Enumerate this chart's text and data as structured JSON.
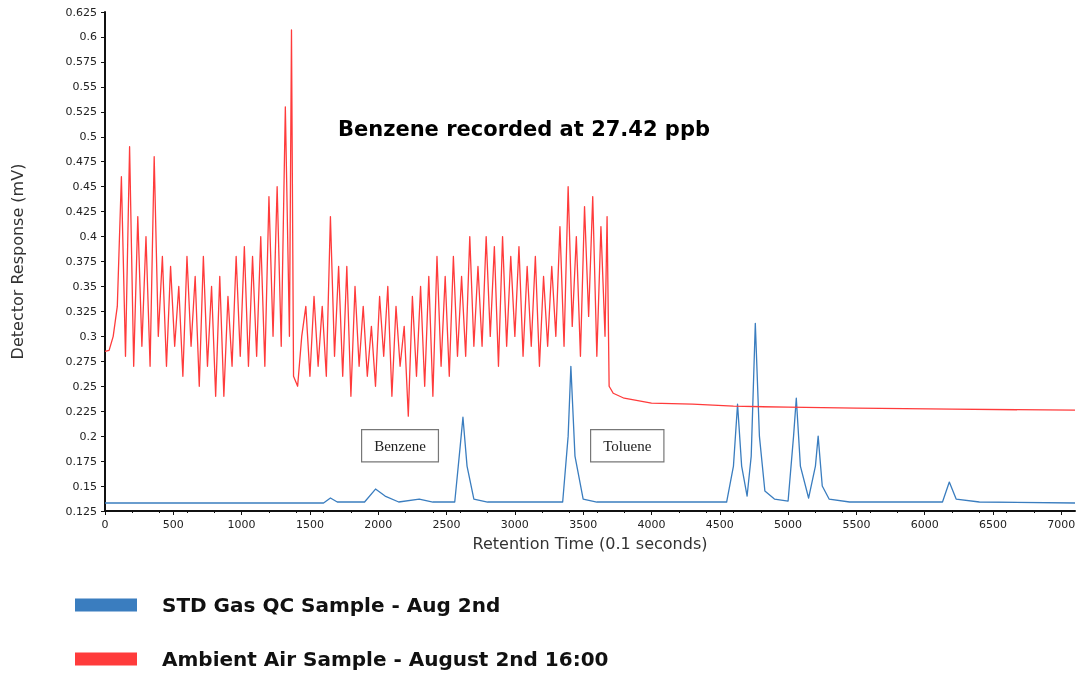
{
  "chart_data": {
    "type": "line",
    "xlabel": "Retention Time (0.1 seconds)",
    "ylabel": "Detector Response (mV)",
    "xlim": [
      0,
      7100
    ],
    "xticks": [
      0,
      500,
      1000,
      1500,
      2000,
      2500,
      3000,
      3500,
      4000,
      4500,
      5000,
      5500,
      6000,
      6500,
      7000
    ],
    "ylim": [
      0.125,
      0.625
    ],
    "yticks": [
      0.125,
      0.15,
      0.175,
      0.2,
      0.225,
      0.25,
      0.275,
      0.3,
      0.325,
      0.35,
      0.375,
      0.4,
      0.425,
      0.45,
      0.475,
      0.5,
      0.525,
      0.55,
      0.575,
      0.6,
      0.625
    ],
    "grid": false,
    "legend": "bottom",
    "marker": "none",
    "line_style": "solid",
    "annotations": [
      "Benzene recorded at 27.42 ppb",
      "Benzene",
      "Toluene"
    ],
    "series": [
      {
        "name": "STD Gas QC Sample - Aug 2nd",
        "color": "#3a7dbf",
        "x": [
          0,
          1600,
          1650,
          1700,
          1900,
          1980,
          2050,
          2150,
          2300,
          2400,
          2560,
          2600,
          2620,
          2650,
          2700,
          2800,
          3350,
          3390,
          3410,
          3440,
          3500,
          3600,
          4550,
          4600,
          4630,
          4660,
          4700,
          4730,
          4760,
          4790,
          4830,
          4900,
          5000,
          5040,
          5060,
          5090,
          5150,
          5200,
          5220,
          5250,
          5300,
          5450,
          6130,
          6180,
          6230,
          6400,
          7100
        ],
        "values": [
          0.133,
          0.133,
          0.138,
          0.134,
          0.134,
          0.147,
          0.14,
          0.134,
          0.137,
          0.134,
          0.134,
          0.19,
          0.219,
          0.17,
          0.137,
          0.134,
          0.134,
          0.2,
          0.27,
          0.18,
          0.137,
          0.134,
          0.134,
          0.17,
          0.232,
          0.17,
          0.14,
          0.18,
          0.313,
          0.2,
          0.145,
          0.137,
          0.135,
          0.2,
          0.238,
          0.17,
          0.138,
          0.17,
          0.2,
          0.15,
          0.137,
          0.134,
          0.134,
          0.154,
          0.137,
          0.134,
          0.133
        ]
      },
      {
        "name": "Ambient Air Sample - August 2nd 16:00",
        "color": "#ff3b3b",
        "x": [
          0,
          30,
          60,
          90,
          120,
          150,
          180,
          210,
          240,
          270,
          300,
          330,
          360,
          390,
          420,
          450,
          480,
          510,
          540,
          570,
          600,
          630,
          660,
          690,
          720,
          750,
          780,
          810,
          840,
          870,
          900,
          930,
          960,
          990,
          1020,
          1050,
          1080,
          1110,
          1140,
          1170,
          1200,
          1230,
          1260,
          1290,
          1320,
          1350,
          1365,
          1380,
          1410,
          1440,
          1470,
          1500,
          1530,
          1560,
          1590,
          1620,
          1650,
          1680,
          1710,
          1740,
          1770,
          1800,
          1830,
          1860,
          1890,
          1920,
          1950,
          1980,
          2010,
          2040,
          2070,
          2100,
          2130,
          2160,
          2190,
          2220,
          2250,
          2280,
          2310,
          2340,
          2370,
          2400,
          2430,
          2460,
          2490,
          2520,
          2550,
          2580,
          2610,
          2640,
          2670,
          2700,
          2730,
          2760,
          2790,
          2820,
          2850,
          2880,
          2910,
          2940,
          2970,
          3000,
          3030,
          3060,
          3090,
          3120,
          3150,
          3180,
          3210,
          3240,
          3270,
          3300,
          3330,
          3360,
          3390,
          3420,
          3450,
          3480,
          3510,
          3540,
          3570,
          3600,
          3630,
          3660,
          3675,
          3690,
          3720,
          3800,
          4000,
          4300,
          4600,
          5000,
          5500,
          6200,
          7100
        ],
        "values": [
          0.285,
          0.286,
          0.3,
          0.33,
          0.46,
          0.28,
          0.49,
          0.27,
          0.42,
          0.29,
          0.4,
          0.27,
          0.48,
          0.3,
          0.38,
          0.27,
          0.37,
          0.29,
          0.35,
          0.26,
          0.38,
          0.29,
          0.36,
          0.25,
          0.38,
          0.27,
          0.35,
          0.24,
          0.36,
          0.24,
          0.34,
          0.27,
          0.38,
          0.28,
          0.39,
          0.27,
          0.38,
          0.28,
          0.4,
          0.27,
          0.44,
          0.3,
          0.45,
          0.29,
          0.53,
          0.3,
          0.607,
          0.26,
          0.25,
          0.3,
          0.33,
          0.26,
          0.34,
          0.27,
          0.33,
          0.26,
          0.42,
          0.28,
          0.37,
          0.26,
          0.37,
          0.24,
          0.35,
          0.27,
          0.33,
          0.26,
          0.31,
          0.25,
          0.34,
          0.28,
          0.35,
          0.24,
          0.33,
          0.27,
          0.31,
          0.22,
          0.34,
          0.26,
          0.35,
          0.25,
          0.36,
          0.24,
          0.38,
          0.27,
          0.36,
          0.26,
          0.38,
          0.28,
          0.36,
          0.28,
          0.4,
          0.29,
          0.37,
          0.29,
          0.4,
          0.3,
          0.39,
          0.27,
          0.4,
          0.29,
          0.38,
          0.3,
          0.39,
          0.28,
          0.37,
          0.29,
          0.38,
          0.27,
          0.36,
          0.29,
          0.37,
          0.3,
          0.41,
          0.29,
          0.45,
          0.31,
          0.4,
          0.28,
          0.43,
          0.32,
          0.44,
          0.28,
          0.41,
          0.3,
          0.42,
          0.25,
          0.243,
          0.238,
          0.233,
          0.232,
          0.23,
          0.229,
          0.228,
          0.227,
          0.226
        ]
      }
    ]
  }
}
